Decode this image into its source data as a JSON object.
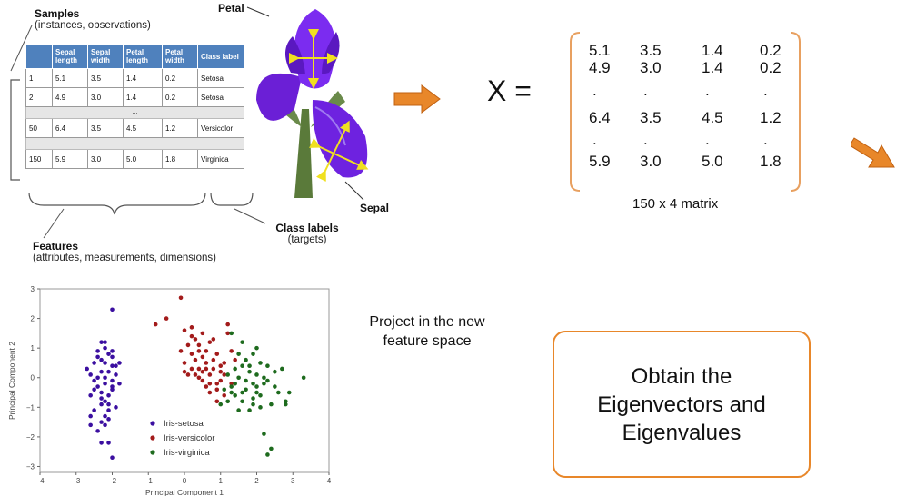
{
  "samples": {
    "title": "Samples",
    "subtitle": "(instances, observations)"
  },
  "table": {
    "headers": [
      "",
      "Sepal length",
      "Sepal width",
      "Petal length",
      "Petal width",
      "Class label"
    ],
    "rows": [
      [
        "1",
        "5.1",
        "3.5",
        "1.4",
        "0.2",
        "Setosa"
      ],
      [
        "2",
        "4.9",
        "3.0",
        "1.4",
        "0.2",
        "Setosa"
      ],
      [
        "50",
        "6.4",
        "3.5",
        "4.5",
        "1.2",
        "Versicolor"
      ],
      [
        "150",
        "5.9",
        "3.0",
        "5.0",
        "1.8",
        "Virginica"
      ]
    ],
    "ellipsis": "..."
  },
  "petal_label": "Petal",
  "sepal_label": "Sepal",
  "features": {
    "title": "Features",
    "subtitle": "(attributes, measurements, dimensions)"
  },
  "class_labels": {
    "title": "Class labels",
    "subtitle": "(targets)"
  },
  "matrix": {
    "lhs": "X =",
    "rows": [
      [
        "5.1",
        "3.5",
        "1.4",
        "0.2"
      ],
      [
        "4.9",
        "3.0",
        "1.4",
        "0.2"
      ],
      [
        ".",
        ".",
        ".",
        "."
      ],
      [
        "6.4",
        "3.5",
        "4.5",
        "1.2"
      ],
      [
        ".",
        ".",
        ".",
        "."
      ],
      [
        "5.9",
        "3.0",
        "5.0",
        "1.8"
      ]
    ],
    "caption": "150 x 4 matrix"
  },
  "project_text": [
    "Project in the new",
    "feature space"
  ],
  "eigen_box": [
    "Obtain the",
    "Eigenvectors and",
    "Eigenvalues"
  ],
  "colors": {
    "accent": "#e8872a",
    "table_header": "#4f81bd",
    "setosa": "#3b0fa0",
    "versicolor": "#a31b1b",
    "virginica": "#1e6b1e"
  },
  "chart_data": {
    "type": "scatter",
    "xlabel": "Principal Component 1",
    "ylabel": "Principal Component 2",
    "xlim": [
      -4,
      4
    ],
    "ylim": [
      -3.2,
      3
    ],
    "xticks": [
      "−4",
      "−3",
      "−2",
      "−1",
      "0",
      "1",
      "2",
      "3",
      "4"
    ],
    "yticks": [
      "3",
      "2",
      "1",
      "0",
      "−1",
      "−2",
      "−3"
    ],
    "legend_position": "bottom-center",
    "series": [
      {
        "name": "Iris-setosa",
        "color": "#3b0fa0",
        "points": [
          [
            -2.7,
            0.3
          ],
          [
            -2.5,
            -0.1
          ],
          [
            -2.6,
            -0.6
          ],
          [
            -2.4,
            0.9
          ],
          [
            -2.3,
            0.6
          ],
          [
            -2.2,
            1.0
          ],
          [
            -2.1,
            0.2
          ],
          [
            -2.0,
            -0.3
          ],
          [
            -2.3,
            -0.5
          ],
          [
            -2.5,
            -1.1
          ],
          [
            -2.2,
            -0.8
          ],
          [
            -2.0,
            0.7
          ],
          [
            -1.9,
            0.4
          ],
          [
            -1.8,
            -0.2
          ],
          [
            -2.1,
            -1.4
          ],
          [
            -2.4,
            -1.8
          ],
          [
            -2.6,
            -1.6
          ],
          [
            -2.2,
            -1.6
          ],
          [
            -2.3,
            -2.2
          ],
          [
            -2.0,
            -2.7
          ],
          [
            -2.0,
            2.3
          ],
          [
            -2.1,
            -0.6
          ],
          [
            -2.2,
            0.0
          ],
          [
            -2.3,
            0.2
          ],
          [
            -2.4,
            -0.3
          ],
          [
            -2.0,
            0.9
          ],
          [
            -1.9,
            -1.0
          ],
          [
            -2.2,
            0.5
          ],
          [
            -2.3,
            1.2
          ],
          [
            -2.1,
            0.8
          ],
          [
            -2.5,
            0.5
          ],
          [
            -2.4,
            0.0
          ],
          [
            -2.0,
            -0.1
          ],
          [
            -1.9,
            0.1
          ],
          [
            -2.2,
            -0.2
          ],
          [
            -2.3,
            -0.9
          ],
          [
            -2.1,
            -1.1
          ],
          [
            -2.6,
            -1.3
          ],
          [
            -2.0,
            0.4
          ],
          [
            -2.4,
            0.7
          ],
          [
            -2.2,
            -1.3
          ],
          [
            -1.8,
            0.5
          ],
          [
            -2.5,
            -0.4
          ],
          [
            -2.3,
            -1.5
          ],
          [
            -2.1,
            -2.2
          ],
          [
            -2.2,
            1.2
          ],
          [
            -2.0,
            -0.4
          ],
          [
            -2.6,
            0.1
          ],
          [
            -2.3,
            -0.7
          ],
          [
            -2.1,
            -0.9
          ]
        ]
      },
      {
        "name": "Iris-versicolor",
        "color": "#a31b1b",
        "points": [
          [
            -0.8,
            1.8
          ],
          [
            -0.5,
            2.0
          ],
          [
            -0.1,
            2.7
          ],
          [
            0.0,
            1.6
          ],
          [
            0.2,
            1.7
          ],
          [
            0.3,
            1.3
          ],
          [
            0.1,
            1.1
          ],
          [
            0.4,
            0.9
          ],
          [
            0.5,
            1.5
          ],
          [
            0.7,
            1.2
          ],
          [
            0.8,
            0.6
          ],
          [
            0.6,
            0.3
          ],
          [
            0.2,
            0.3
          ],
          [
            0.0,
            0.5
          ],
          [
            -0.1,
            0.9
          ],
          [
            0.4,
            0.0
          ],
          [
            0.7,
            0.1
          ],
          [
            0.9,
            -0.2
          ],
          [
            1.1,
            0.5
          ],
          [
            1.2,
            1.8
          ],
          [
            1.3,
            0.9
          ],
          [
            1.0,
            0.2
          ],
          [
            0.9,
            -0.4
          ],
          [
            0.7,
            -0.5
          ],
          [
            0.6,
            -0.3
          ],
          [
            0.5,
            0.2
          ],
          [
            0.3,
            0.6
          ],
          [
            0.1,
            0.1
          ],
          [
            0.4,
            0.3
          ],
          [
            0.8,
            1.3
          ],
          [
            1.0,
            -0.1
          ],
          [
            1.1,
            -0.6
          ],
          [
            0.6,
            0.9
          ],
          [
            0.2,
            0.8
          ],
          [
            0.5,
            -0.1
          ],
          [
            0.9,
            0.8
          ],
          [
            1.2,
            1.5
          ],
          [
            0.7,
            -0.2
          ],
          [
            0.3,
            0.1
          ],
          [
            0.8,
            0.3
          ],
          [
            1.3,
            -0.2
          ],
          [
            0.4,
            1.1
          ],
          [
            1.1,
            0.1
          ],
          [
            0.6,
            0.5
          ],
          [
            0.2,
            1.4
          ],
          [
            0.9,
            -0.8
          ],
          [
            1.4,
            0.6
          ],
          [
            0.0,
            0.2
          ],
          [
            0.5,
            0.7
          ],
          [
            1.0,
            0.4
          ]
        ]
      },
      {
        "name": "Iris-virginica",
        "color": "#1e6b1e",
        "points": [
          [
            1.3,
            1.5
          ],
          [
            1.6,
            1.2
          ],
          [
            1.9,
            0.8
          ],
          [
            2.1,
            0.5
          ],
          [
            1.8,
            0.2
          ],
          [
            1.5,
            0.0
          ],
          [
            1.3,
            -0.3
          ],
          [
            1.1,
            -0.4
          ],
          [
            1.4,
            -0.6
          ],
          [
            1.7,
            -0.4
          ],
          [
            2.0,
            -0.3
          ],
          [
            2.3,
            -0.1
          ],
          [
            2.6,
            -0.5
          ],
          [
            2.8,
            -0.8
          ],
          [
            3.3,
            0.0
          ],
          [
            2.9,
            -0.5
          ],
          [
            2.5,
            0.2
          ],
          [
            2.2,
            -0.2
          ],
          [
            1.9,
            -0.7
          ],
          [
            1.6,
            -0.8
          ],
          [
            1.2,
            -0.8
          ],
          [
            1.0,
            -0.9
          ],
          [
            1.4,
            0.3
          ],
          [
            1.7,
            0.6
          ],
          [
            2.0,
            1.0
          ],
          [
            2.3,
            0.4
          ],
          [
            2.7,
            0.3
          ],
          [
            2.4,
            -0.9
          ],
          [
            2.1,
            -1.0
          ],
          [
            1.8,
            -1.1
          ],
          [
            1.5,
            -1.1
          ],
          [
            2.2,
            -1.9
          ],
          [
            2.4,
            -2.4
          ],
          [
            2.3,
            -2.6
          ],
          [
            1.9,
            -0.2
          ],
          [
            1.6,
            0.4
          ],
          [
            2.0,
            0.1
          ],
          [
            1.2,
            0.1
          ],
          [
            1.5,
            0.8
          ],
          [
            2.5,
            -0.3
          ],
          [
            2.8,
            -0.9
          ],
          [
            1.7,
            -0.1
          ],
          [
            2.1,
            -0.6
          ],
          [
            1.4,
            -0.2
          ],
          [
            1.8,
            0.4
          ],
          [
            2.2,
            0.0
          ],
          [
            1.3,
            -0.5
          ],
          [
            1.9,
            -0.9
          ],
          [
            1.6,
            -0.5
          ],
          [
            2.0,
            -0.5
          ]
        ]
      }
    ]
  }
}
